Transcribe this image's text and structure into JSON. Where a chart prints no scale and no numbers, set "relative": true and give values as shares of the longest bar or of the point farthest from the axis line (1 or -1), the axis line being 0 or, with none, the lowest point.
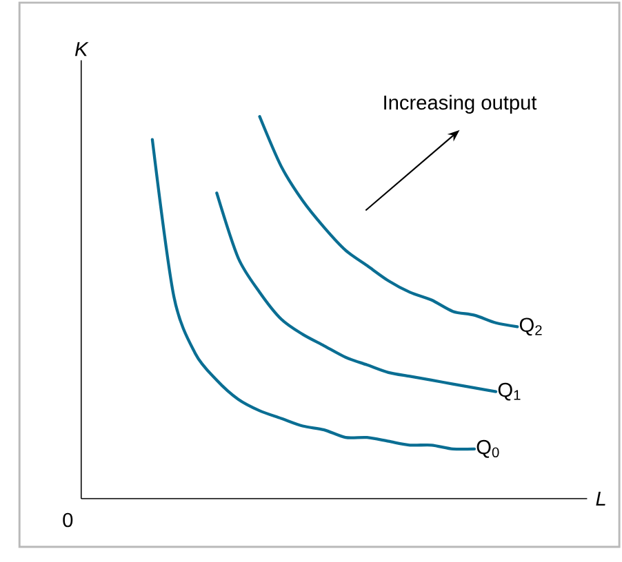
{
  "chart_data": {
    "type": "line",
    "relative": true,
    "xlabel": "L",
    "ylabel": "K",
    "annotations": [
      "Increasing output",
      "0"
    ],
    "categories": [
      null,
      null,
      null,
      null,
      null,
      null,
      null,
      null,
      null,
      null,
      null,
      null,
      null,
      null,
      null,
      null,
      null,
      null
    ],
    "series": [
      {
        "name": "Q$_{0}$",
        "color": "#0a6e93",
        "values": [
          0.94,
          0.53,
          0.38,
          0.31,
          0.26,
          0.23,
          0.21,
          0.19,
          0.18,
          0.16,
          0.16,
          0.15,
          0.14,
          0.14,
          0.13,
          0.13,
          null,
          null
        ]
      },
      {
        "name": "Q$_{1}$",
        "color": "#0a6e93",
        "values": [
          null,
          null,
          null,
          0.8,
          0.63,
          0.54,
          0.47,
          0.43,
          0.4,
          0.37,
          0.35,
          0.33,
          0.32,
          0.31,
          0.3,
          0.29,
          0.28,
          null
        ]
      },
      {
        "name": "Q$_{2}$",
        "color": "#0a6e93",
        "values": [
          null,
          null,
          null,
          null,
          null,
          1.0,
          0.87,
          0.78,
          0.71,
          0.65,
          0.61,
          0.57,
          0.54,
          0.52,
          0.49,
          0.48,
          0.46,
          0.45
        ]
      }
    ]
  }
}
